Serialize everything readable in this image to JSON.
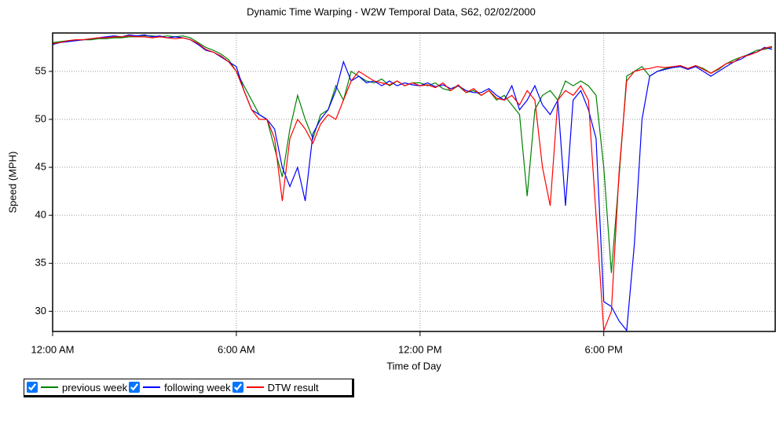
{
  "chart_data": {
    "type": "line",
    "title": "Dynamic Time Warping - W2W Temporal Data, S62, 02/02/2000",
    "xlabel": "Time of Day",
    "ylabel": "Speed (MPH)",
    "xlim": [
      0,
      23.6
    ],
    "ylim": [
      27.9,
      59
    ],
    "xticks": [
      {
        "value": 0,
        "label": "12:00 AM"
      },
      {
        "value": 6,
        "label": "6:00 AM"
      },
      {
        "value": 12,
        "label": "12:00 PM"
      },
      {
        "value": 18,
        "label": "6:00 PM"
      }
    ],
    "yticks": [
      30,
      35,
      40,
      45,
      50,
      55
    ],
    "grid": true,
    "x": [
      0,
      0.25,
      0.5,
      0.75,
      1,
      1.25,
      1.5,
      1.75,
      2,
      2.25,
      2.5,
      2.75,
      3,
      3.25,
      3.5,
      3.75,
      4,
      4.25,
      4.5,
      4.75,
      5,
      5.25,
      5.5,
      5.75,
      6,
      6.25,
      6.5,
      6.75,
      7,
      7.25,
      7.5,
      7.75,
      8,
      8.25,
      8.5,
      8.75,
      9,
      9.25,
      9.5,
      9.75,
      10,
      10.25,
      10.5,
      10.75,
      11,
      11.25,
      11.5,
      11.75,
      12,
      12.25,
      12.5,
      12.75,
      13,
      13.25,
      13.5,
      13.75,
      14,
      14.25,
      14.5,
      14.75,
      15,
      15.25,
      15.5,
      15.75,
      16,
      16.25,
      16.5,
      16.75,
      17,
      17.25,
      17.5,
      17.75,
      18,
      18.25,
      18.5,
      18.75,
      19,
      19.25,
      19.5,
      19.75,
      20,
      20.25,
      20.5,
      20.75,
      21,
      21.25,
      21.5,
      21.75,
      22,
      22.25,
      22.5,
      22.75,
      23,
      23.25,
      23.5
    ],
    "series": [
      {
        "name": "previous week",
        "color": "#008000",
        "values": [
          58.0,
          58.1,
          58.2,
          58.2,
          58.3,
          58.3,
          58.4,
          58.4,
          58.5,
          58.5,
          58.6,
          58.6,
          58.7,
          58.7,
          58.6,
          58.7,
          58.6,
          58.7,
          58.5,
          58.0,
          57.5,
          57.2,
          56.8,
          56.2,
          55.0,
          53.5,
          52.0,
          50.5,
          50.0,
          47.0,
          44.0,
          49.0,
          52.5,
          50.0,
          48.0,
          50.5,
          51.0,
          53.5,
          52.0,
          55.0,
          54.5,
          54.0,
          53.8,
          54.2,
          53.5,
          54.0,
          53.5,
          53.8,
          53.8,
          53.5,
          53.8,
          53.2,
          53.0,
          53.5,
          52.8,
          53.0,
          52.5,
          53.0,
          52.0,
          52.5,
          51.5,
          50.5,
          42.0,
          51.0,
          52.5,
          53.0,
          52.0,
          54.0,
          53.5,
          54.0,
          53.5,
          52.5,
          45.0,
          34.0,
          44.0,
          54.5,
          55.0,
          55.5,
          54.5,
          55.0,
          55.3,
          55.4,
          55.5,
          55.3,
          55.6,
          55.3,
          54.8,
          55.2,
          55.8,
          56.2,
          56.5,
          56.8,
          57.2,
          57.3,
          57.5
        ]
      },
      {
        "name": "following week",
        "color": "#0000ff",
        "values": [
          57.8,
          58.0,
          58.1,
          58.2,
          58.3,
          58.4,
          58.5,
          58.6,
          58.7,
          58.6,
          58.8,
          58.7,
          58.8,
          58.6,
          58.7,
          58.5,
          58.6,
          58.5,
          58.3,
          57.8,
          57.2,
          57.0,
          56.5,
          56.0,
          55.5,
          53.0,
          51.0,
          50.5,
          50.0,
          49.0,
          45.0,
          43.0,
          45.0,
          41.5,
          48.5,
          50.0,
          51.0,
          53.0,
          56.0,
          54.0,
          54.5,
          53.8,
          54.0,
          53.5,
          54.0,
          53.5,
          53.8,
          53.6,
          53.5,
          53.8,
          53.4,
          53.6,
          53.2,
          53.5,
          53.0,
          52.8,
          52.8,
          53.2,
          52.5,
          52.0,
          53.5,
          51.0,
          52.0,
          53.5,
          51.5,
          50.5,
          52.0,
          41.0,
          52.0,
          53.0,
          51.0,
          48.0,
          31.0,
          30.5,
          29.0,
          28.0,
          37.0,
          50.0,
          54.5,
          55.0,
          55.2,
          55.4,
          55.5,
          55.2,
          55.5,
          55.0,
          54.5,
          55.0,
          55.5,
          56.0,
          56.3,
          56.8,
          57.0,
          57.5,
          57.3
        ]
      },
      {
        "name": "DTW result",
        "color": "#ff0000",
        "values": [
          57.9,
          58.0,
          58.2,
          58.3,
          58.3,
          58.4,
          58.5,
          58.5,
          58.6,
          58.6,
          58.7,
          58.6,
          58.6,
          58.5,
          58.6,
          58.5,
          58.4,
          58.5,
          58.3,
          57.9,
          57.3,
          57.0,
          56.6,
          56.0,
          55.0,
          53.0,
          51.0,
          50.0,
          50.0,
          48.0,
          41.5,
          48.0,
          50.0,
          49.0,
          47.5,
          49.5,
          50.5,
          50.0,
          52.0,
          54.0,
          55.0,
          54.5,
          54.0,
          53.8,
          53.6,
          54.0,
          53.5,
          53.8,
          53.5,
          53.6,
          53.3,
          53.8,
          53.0,
          53.6,
          52.8,
          53.2,
          52.5,
          53.0,
          52.2,
          52.0,
          52.5,
          51.5,
          53.0,
          52.0,
          45.0,
          41.0,
          52.0,
          53.0,
          52.5,
          53.5,
          52.0,
          40.0,
          28.0,
          30.0,
          44.5,
          54.0,
          55.0,
          55.2,
          55.3,
          55.5,
          55.4,
          55.5,
          55.6,
          55.3,
          55.6,
          55.2,
          54.8,
          55.3,
          55.8,
          56.0,
          56.5,
          56.7,
          57.0,
          57.4,
          57.6
        ]
      }
    ]
  }
}
